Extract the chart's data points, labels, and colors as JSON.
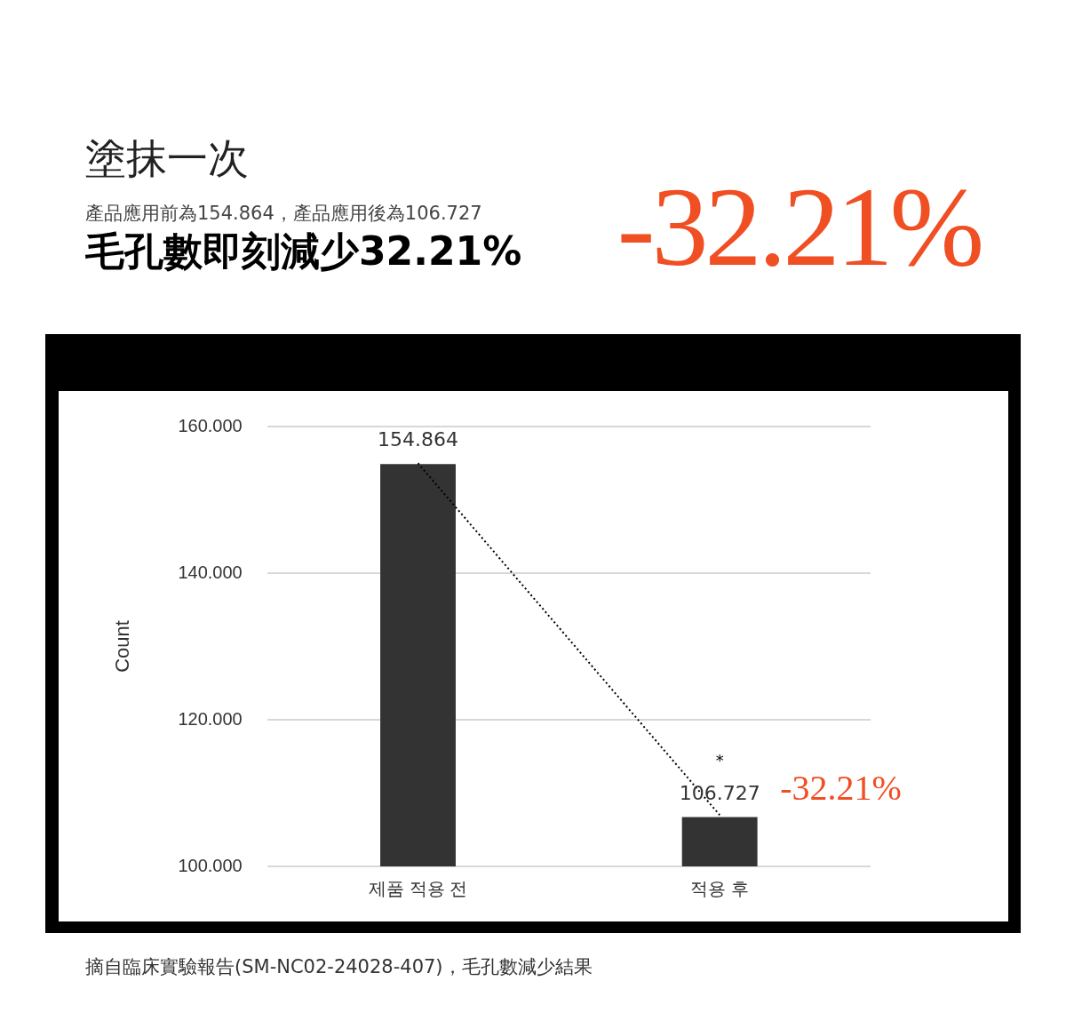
{
  "chart_data": {
    "type": "bar",
    "title": "塗抹一次",
    "subtitle": "產品應用前為154.864，產品應用後為106.727",
    "annotations": [
      "毛孔數即刻減少32.21%",
      "-32.21%",
      "*",
      {
        "text": "-32.21%",
        "x": "적용 후",
        "y": 106.727
      },
      "摘自臨床實驗報告(SM-NC02-24028-407)，毛孔數減少結果"
    ],
    "ylabel": "Count",
    "categories": [
      "제품 적용 전",
      "적용 후"
    ],
    "series": [
      {
        "color": "#333333",
        "values": [
          154.864,
          106.727
        ],
        "value_labels": [
          "154.864",
          "106.727"
        ]
      },
      {
        "type": "line",
        "color": "#000000",
        "line_style": "dotted",
        "marker": "none",
        "values": [
          155,
          107
        ]
      }
    ],
    "ylim": [
      100,
      160
    ],
    "yticks": [
      {
        "value": 100,
        "label": "100.000"
      },
      {
        "value": 120,
        "label": "120.000"
      },
      {
        "value": 140,
        "label": "140.000"
      },
      {
        "value": 160,
        "label": "160.000"
      }
    ],
    "grid": "y",
    "legend": false
  }
}
